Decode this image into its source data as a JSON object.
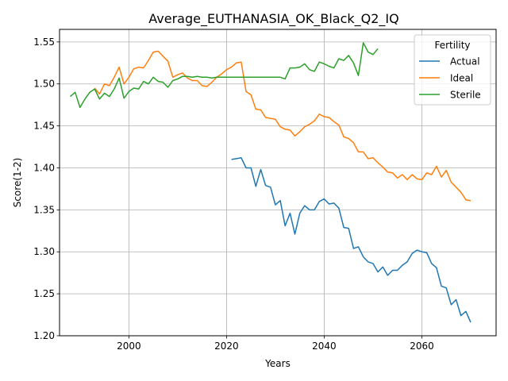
{
  "chart_data": {
    "type": "line",
    "title": "Average_EUTHANASIA_OK_Black_Q2_IQ",
    "xlabel": "Years",
    "ylabel": "Score(1-2)",
    "xlim": [
      1985.8,
      2075.2
    ],
    "ylim": [
      1.2,
      1.565
    ],
    "xticks": [
      2000,
      2020,
      2040,
      2060
    ],
    "yticks": [
      1.2,
      1.25,
      1.3,
      1.35,
      1.4,
      1.45,
      1.5,
      1.55
    ],
    "grid": true,
    "legend": {
      "title": "Fertility",
      "position": "top-right"
    },
    "series": [
      {
        "name": "Actual",
        "color": "#1f77b4",
        "x": [
          2021,
          2022,
          2023,
          2024,
          2025,
          2026,
          2027,
          2028,
          2029,
          2030,
          2031,
          2032,
          2033,
          2034,
          2035,
          2036,
          2037,
          2038,
          2039,
          2040,
          2041,
          2042,
          2043,
          2044,
          2045,
          2046,
          2047,
          2048,
          2049,
          2050,
          2051,
          2052,
          2053,
          2054,
          2055,
          2056,
          2057,
          2058,
          2059,
          2060,
          2061,
          2062,
          2063,
          2064,
          2065,
          2066,
          2067,
          2068,
          2069,
          2070
        ],
        "y": [
          1.41,
          1.411,
          1.412,
          1.4,
          1.4,
          1.378,
          1.398,
          1.379,
          1.377,
          1.356,
          1.361,
          1.331,
          1.346,
          1.321,
          1.346,
          1.355,
          1.35,
          1.35,
          1.36,
          1.363,
          1.357,
          1.358,
          1.352,
          1.329,
          1.328,
          1.304,
          1.306,
          1.294,
          1.288,
          1.286,
          1.276,
          1.282,
          1.272,
          1.278,
          1.278,
          1.284,
          1.288,
          1.298,
          1.302,
          1.3,
          1.299,
          1.286,
          1.281,
          1.259,
          1.257,
          1.237,
          1.243,
          1.224,
          1.229,
          1.216
        ]
      },
      {
        "name": "Ideal",
        "color": "#ff7f0e",
        "x": [
          1993,
          1994,
          1995,
          1996,
          1997,
          1998,
          1999,
          2000,
          2001,
          2002,
          2003,
          2004,
          2005,
          2006,
          2007,
          2008,
          2009,
          2010,
          2011,
          2012,
          2013,
          2014,
          2015,
          2016,
          2017,
          2018,
          2019,
          2020,
          2021,
          2022,
          2023,
          2024,
          2025,
          2026,
          2027,
          2028,
          2029,
          2030,
          2031,
          2032,
          2033,
          2034,
          2035,
          2036,
          2037,
          2038,
          2039,
          2040,
          2041,
          2042,
          2043,
          2044,
          2045,
          2046,
          2047,
          2048,
          2049,
          2050,
          2051,
          2052,
          2053,
          2054,
          2055,
          2056,
          2057,
          2058,
          2059,
          2060,
          2061,
          2062,
          2063,
          2064,
          2065,
          2066,
          2067,
          2068,
          2069,
          2070
        ],
        "y": [
          1.495,
          1.488,
          1.5,
          1.498,
          1.508,
          1.52,
          1.5,
          1.508,
          1.518,
          1.52,
          1.519,
          1.528,
          1.538,
          1.539,
          1.533,
          1.527,
          1.508,
          1.511,
          1.513,
          1.507,
          1.504,
          1.504,
          1.498,
          1.497,
          1.502,
          1.508,
          1.512,
          1.517,
          1.52,
          1.525,
          1.526,
          1.491,
          1.487,
          1.47,
          1.469,
          1.46,
          1.459,
          1.458,
          1.449,
          1.446,
          1.445,
          1.438,
          1.443,
          1.449,
          1.452,
          1.456,
          1.464,
          1.461,
          1.46,
          1.455,
          1.451,
          1.437,
          1.435,
          1.43,
          1.419,
          1.419,
          1.411,
          1.412,
          1.406,
          1.401,
          1.395,
          1.394,
          1.388,
          1.392,
          1.386,
          1.392,
          1.387,
          1.386,
          1.394,
          1.392,
          1.402,
          1.389,
          1.397,
          1.383,
          1.377,
          1.371,
          1.362,
          1.361
        ]
      },
      {
        "name": "Sterile",
        "color": "#2ca02c",
        "x": [
          1988,
          1989,
          1990,
          1991,
          1992,
          1993,
          1994,
          1995,
          1996,
          1997,
          1998,
          1999,
          2000,
          2001,
          2002,
          2003,
          2004,
          2005,
          2006,
          2007,
          2008,
          2009,
          2010,
          2011,
          2012,
          2013,
          2014,
          2015,
          2016,
          2017,
          2018,
          2019,
          2020,
          2021,
          2022,
          2023,
          2024,
          2025,
          2026,
          2027,
          2028,
          2029,
          2030,
          2031,
          2032,
          2033,
          2034,
          2035,
          2036,
          2037,
          2038,
          2039,
          2040,
          2041,
          2042,
          2043,
          2044,
          2045,
          2046,
          2047,
          2048,
          2049,
          2050,
          2051
        ],
        "y": [
          1.485,
          1.49,
          1.472,
          1.482,
          1.49,
          1.494,
          1.482,
          1.489,
          1.485,
          1.494,
          1.507,
          1.483,
          1.491,
          1.495,
          1.494,
          1.503,
          1.5,
          1.508,
          1.503,
          1.502,
          1.496,
          1.504,
          1.506,
          1.509,
          1.509,
          1.508,
          1.509,
          1.508,
          1.508,
          1.507,
          1.508,
          1.508,
          1.508,
          1.508,
          1.508,
          1.508,
          1.508,
          1.508,
          1.508,
          1.508,
          1.508,
          1.508,
          1.508,
          1.508,
          1.506,
          1.519,
          1.519,
          1.52,
          1.524,
          1.517,
          1.515,
          1.526,
          1.524,
          1.521,
          1.519,
          1.53,
          1.528,
          1.534,
          1.525,
          1.51,
          1.549,
          1.538,
          1.535,
          1.542
        ]
      }
    ]
  }
}
